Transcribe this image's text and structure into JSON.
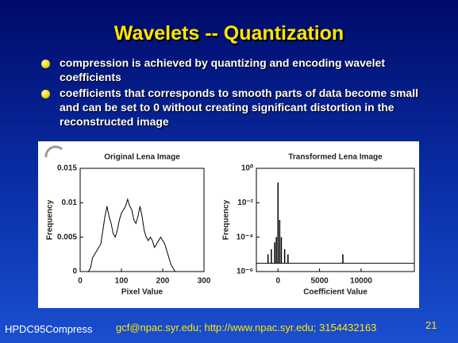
{
  "title": "Wavelets -- Quantization",
  "bullets": [
    "compression is achieved by quantizing and encoding wavelet coefficients",
    "coefficients that corresponds to smooth parts of data become small and can be set to 0 without creating significant distortion in the reconstructed image"
  ],
  "footer": {
    "left": "HPDC95Compress",
    "center": "gcf@npac.syr.edu; http://www.npac.syr.edu; 3154432163",
    "page": "21"
  },
  "chart_data": [
    {
      "type": "line",
      "title": "Original Lena Image",
      "x_label": "Pixel Value",
      "y_label": "Frequency",
      "color": "#000000",
      "x": [
        0,
        20,
        25,
        30,
        35,
        40,
        45,
        50,
        55,
        60,
        65,
        70,
        75,
        80,
        85,
        90,
        95,
        100,
        105,
        110,
        115,
        120,
        125,
        130,
        135,
        140,
        145,
        150,
        155,
        160,
        165,
        170,
        175,
        180,
        185,
        190,
        195,
        200,
        205,
        210,
        215,
        220,
        225,
        230,
        235,
        255
      ],
      "values": [
        0,
        0,
        0.0005,
        0.002,
        0.0025,
        0.003,
        0.0035,
        0.004,
        0.006,
        0.008,
        0.0095,
        0.008,
        0.007,
        0.0055,
        0.005,
        0.006,
        0.0075,
        0.0085,
        0.009,
        0.0095,
        0.0105,
        0.0095,
        0.009,
        0.0075,
        0.007,
        0.008,
        0.0095,
        0.008,
        0.006,
        0.005,
        0.0045,
        0.005,
        0.0045,
        0.0035,
        0.004,
        0.0045,
        0.005,
        0.0045,
        0.004,
        0.003,
        0.002,
        0.001,
        0.0005,
        0,
        0,
        0
      ],
      "xlim": [
        0,
        300
      ],
      "xticks": [
        0,
        100,
        200,
        300
      ],
      "ylim": [
        0,
        0.015
      ],
      "yticks": [
        0,
        0.005,
        0.01,
        0.015
      ],
      "log_y": false
    },
    {
      "type": "stem",
      "title": "Transformed Lena Image",
      "x_label": "Coefficient Value",
      "y_label": "Frequency",
      "color": "#000000",
      "baseline": 3e-06,
      "x": [
        -1200,
        -800,
        -400,
        -200,
        0,
        200,
        400,
        800,
        1200,
        7800
      ],
      "values": [
        1e-05,
        2e-05,
        5e-05,
        0.0001,
        0.15,
        0.001,
        0.0001,
        2e-05,
        1e-05,
        1e-05
      ],
      "xlim": [
        -2600,
        16400
      ],
      "xticks": [
        0,
        5000,
        10000
      ],
      "ylim": [
        1e-06,
        1
      ],
      "yticks": [
        {
          "value": 1e-06,
          "label": "10⁻⁶"
        },
        {
          "value": 0.0001,
          "label": "10⁻⁴"
        },
        {
          "value": 0.01,
          "label": "10⁻²"
        },
        {
          "value": 1,
          "label": "10⁰"
        }
      ],
      "log_y": true
    }
  ]
}
